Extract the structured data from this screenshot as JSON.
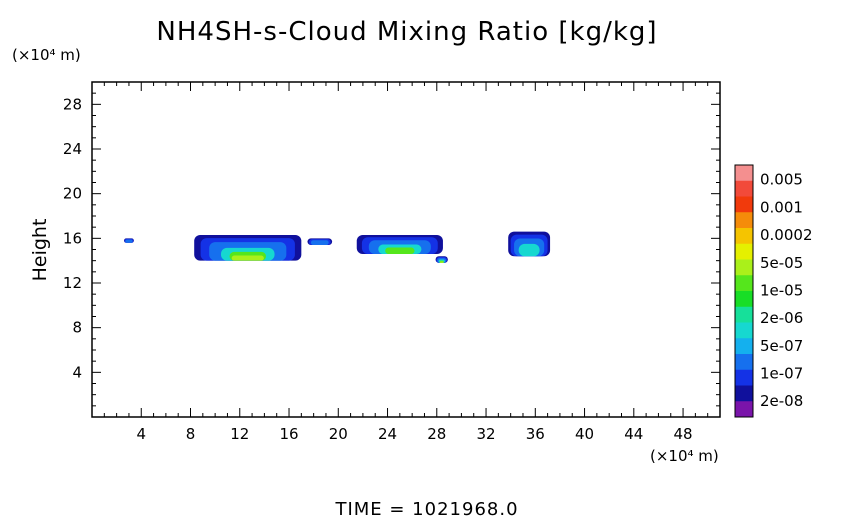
{
  "chart_data": {
    "type": "heatmap",
    "title": "NH4SH-s-Cloud Mixing Ratio [kg/kg]",
    "ylabel": "Height",
    "y_unit": "(×10⁴ m)",
    "x_unit": "(×10⁴ m)",
    "xlim": [
      0,
      51
    ],
    "ylim": [
      0,
      30
    ],
    "x_ticks": [
      4,
      8,
      12,
      16,
      20,
      24,
      28,
      32,
      36,
      40,
      44,
      48
    ],
    "y_ticks": [
      4,
      8,
      12,
      16,
      20,
      24,
      28
    ],
    "footer": "TIME = 1021968.0",
    "colorbar": {
      "labels": [
        "0.005",
        "0.001",
        "0.0002",
        "5e-05",
        "1e-05",
        "2e-06",
        "5e-07",
        "1e-07",
        "2e-08"
      ],
      "colors": [
        "#f48f8f",
        "#f24a3a",
        "#f13a0c",
        "#f58c0a",
        "#f5c400",
        "#e5f000",
        "#aaf01a",
        "#55e61c",
        "#18de26",
        "#16e09a",
        "#16d8d0",
        "#14b0ee",
        "#1670ee",
        "#1432e6",
        "#10109c",
        "#7a14aa"
      ]
    },
    "cloud_regions": [
      {
        "name": "blob-a",
        "x": [
          2.6,
          3.4
        ],
        "y": [
          15.6,
          16.0
        ],
        "level": "1e-07"
      },
      {
        "name": "blob-b",
        "x": [
          8.3,
          17.0
        ],
        "y": [
          14.0,
          16.3
        ],
        "level": "5e-05"
      },
      {
        "name": "blob-c",
        "x": [
          17.5,
          19.5
        ],
        "y": [
          15.4,
          16.0
        ],
        "level": "1e-07"
      },
      {
        "name": "blob-d",
        "x": [
          21.5,
          28.5
        ],
        "y": [
          14.6,
          16.3
        ],
        "level": "1e-05"
      },
      {
        "name": "blob-e",
        "x": [
          27.9,
          28.9
        ],
        "y": [
          13.8,
          14.4
        ],
        "level": "5e-05"
      },
      {
        "name": "blob-f",
        "x": [
          33.8,
          37.2
        ],
        "y": [
          14.4,
          16.6
        ],
        "level": "5e-06"
      }
    ]
  }
}
